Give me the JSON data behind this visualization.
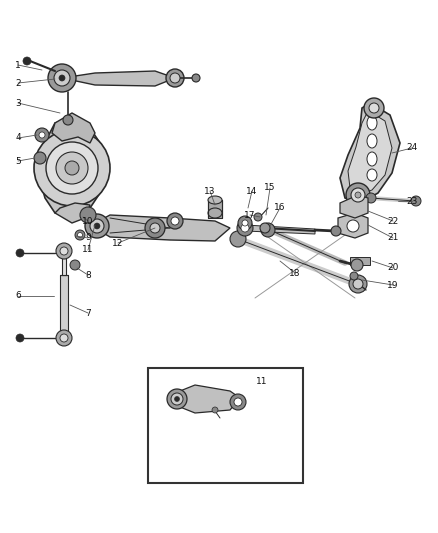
{
  "bg_color": "#ffffff",
  "dark": "#2a2a2a",
  "gray": "#888888",
  "lgray": "#bbbbbb",
  "fig_w": 4.38,
  "fig_h": 5.33,
  "dpi": 100,
  "label_fs": 6.5,
  "leader_color": "#444444",
  "part_fill": "#c8c8c8",
  "part_edge": "#333333",
  "part_dark": "#555555"
}
